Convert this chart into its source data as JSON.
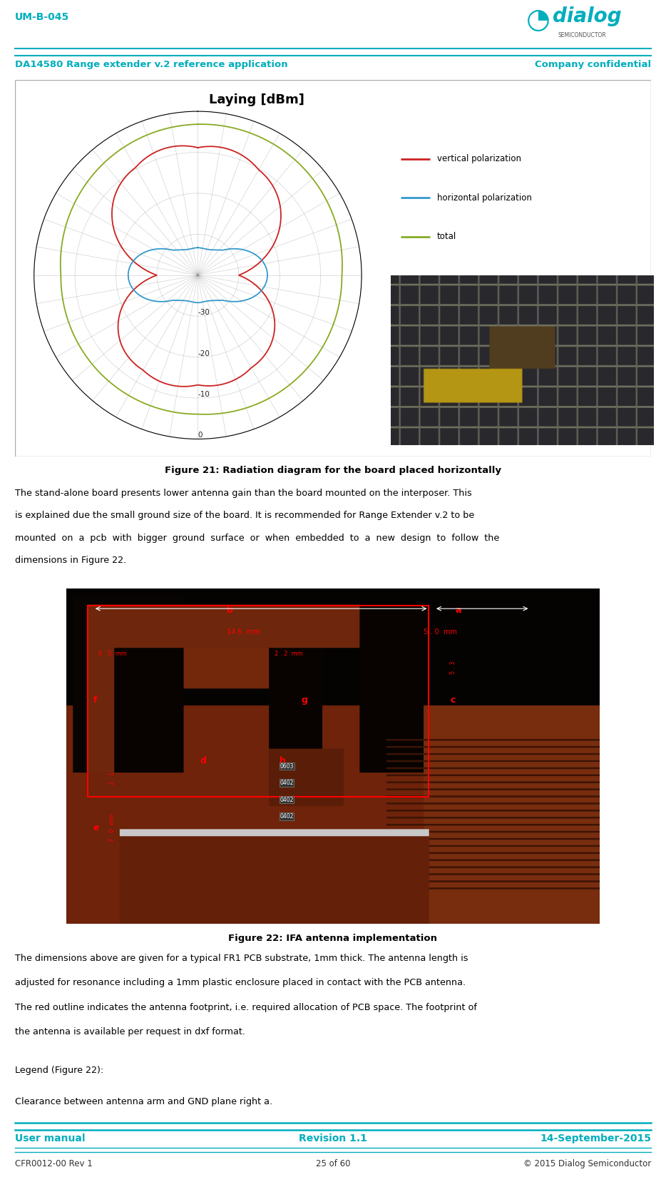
{
  "teal_color": "#00AEBD",
  "header_text_left": "UM-B-045",
  "header_subtext_left": "DA14580 Range extender v.2 reference application",
  "header_subtext_right": "Company confidential",
  "footer_left": "User manual",
  "footer_center": "Revision 1.1",
  "footer_right": "14-September-2015",
  "footer2_left": "CFR0012-00 Rev 1",
  "footer2_center": "25 of 60",
  "footer2_right": "© 2015 Dialog Semiconductor",
  "fig21_caption": "Figure 21: Radiation diagram for the board placed horizontally",
  "fig22_caption": "Figure 22: IFA antenna implementation",
  "body1_lines": [
    "The stand-alone board presents lower antenna gain than the board mounted on the interposer. This",
    "is explained due the small ground size of the board. It is recommended for Range Extender v.2 to be",
    "mounted  on  a  pcb  with  bigger  ground  surface  or  when  embedded  to  a  new  design  to  follow  the",
    "dimensions in Figure 22."
  ],
  "body2_lines": [
    "The dimensions above are given for a typical FR1 PCB substrate, 1mm thick. The antenna length is",
    "adjusted for resonance including a 1mm plastic enclosure placed in contact with the PCB antenna.",
    "The red outline indicates the antenna footprint, i.e. required allocation of PCB space. The footprint of",
    "the antenna is available per request in dxf format."
  ],
  "body_text3": "Legend (Figure 22):",
  "body_text4": "Clearance between antenna arm and GND plane right a.",
  "polar_title": "Laying [dBm]",
  "line_vert_color": "#cc2222",
  "line_horiz_color": "#3399cc",
  "line_total_color": "#88aa22",
  "legend_vert": "vertical polarization",
  "legend_horiz": "horizontal polarization",
  "legend_total": "total",
  "bg_color": "#ffffff",
  "pcb_dark": "#1a0a00",
  "pcb_brown": "#7a2a0a"
}
